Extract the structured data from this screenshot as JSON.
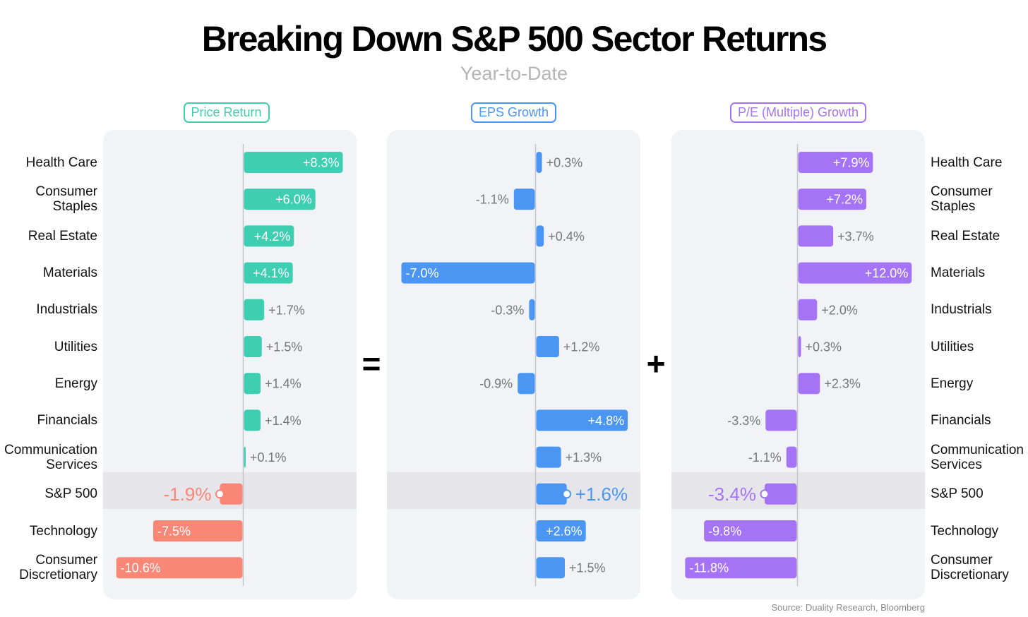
{
  "title": "Breaking Down S&P 500 Sector Returns",
  "subtitle": "Year-to-Date",
  "source": "Source: Duality Research, Bloomberg",
  "operators": {
    "equals": "=",
    "plus": "+"
  },
  "colors": {
    "price_positive": "#3ecfb2",
    "price_negative": "#fa8776",
    "eps": "#4b96f3",
    "pe": "#a574f6",
    "panel_bg": "#f2f3f7",
    "sp500_band": "#e6e6ea",
    "label_gray": "#777777"
  },
  "chart_data": [
    {
      "type": "bar",
      "orientation": "horizontal",
      "title": "Price Return",
      "categories": [
        "Health Care",
        "Consumer Staples",
        "Real Estate",
        "Materials",
        "Industrials",
        "Utilities",
        "Energy",
        "Financials",
        "Communication Services",
        "S&P 500",
        "Technology",
        "Consumer Discretionary"
      ],
      "values": [
        8.3,
        6.0,
        4.2,
        4.1,
        1.7,
        1.5,
        1.4,
        1.4,
        0.1,
        -1.9,
        -7.5,
        -10.6
      ],
      "labels": [
        "+8.3%",
        "+6.0%",
        "+4.2%",
        "+4.1%",
        "+1.7%",
        "+1.5%",
        "+1.4%",
        "+1.4%",
        "+0.1%",
        "-1.9%",
        "-7.5%",
        "-10.6%"
      ],
      "highlight": "S&P 500"
    },
    {
      "type": "bar",
      "orientation": "horizontal",
      "title": "EPS Growth",
      "categories": [
        "Health Care",
        "Consumer Staples",
        "Real Estate",
        "Materials",
        "Industrials",
        "Utilities",
        "Energy",
        "Financials",
        "Communication Services",
        "S&P 500",
        "Technology",
        "Consumer Discretionary"
      ],
      "values": [
        0.3,
        -1.1,
        0.4,
        -7.0,
        -0.3,
        1.2,
        -0.9,
        4.8,
        1.3,
        1.6,
        2.6,
        1.5
      ],
      "labels": [
        "+0.3%",
        "-1.1%",
        "+0.4%",
        "-7.0%",
        "-0.3%",
        "+1.2%",
        "-0.9%",
        "+4.8%",
        "+1.3%",
        "+1.6%",
        "+2.6%",
        "+1.5%"
      ],
      "highlight": "S&P 500"
    },
    {
      "type": "bar",
      "orientation": "horizontal",
      "title": "P/E (Multiple) Growth",
      "categories": [
        "Health Care",
        "Consumer Staples",
        "Real Estate",
        "Materials",
        "Industrials",
        "Utilities",
        "Energy",
        "Financials",
        "Communication Services",
        "S&P 500",
        "Technology",
        "Consumer Discretionary"
      ],
      "values": [
        7.9,
        7.2,
        3.7,
        12.0,
        2.0,
        0.3,
        2.3,
        -3.3,
        -1.1,
        -3.4,
        -9.8,
        -11.8
      ],
      "labels": [
        "+7.9%",
        "+7.2%",
        "+3.7%",
        "+12.0%",
        "+2.0%",
        "+0.3%",
        "+2.3%",
        "-3.3%",
        "-1.1%",
        "-3.4%",
        "-9.8%",
        "-11.8%"
      ],
      "highlight": "S&P 500"
    }
  ],
  "row_labels": [
    [
      "Health Care"
    ],
    [
      "Consumer",
      "Staples"
    ],
    [
      "Real Estate"
    ],
    [
      "Materials"
    ],
    [
      "Industrials"
    ],
    [
      "Utilities"
    ],
    [
      "Energy"
    ],
    [
      "Financials"
    ],
    [
      "Communication",
      "Services"
    ],
    [
      "S&P 500"
    ],
    [
      "Technology"
    ],
    [
      "Consumer",
      "Discretionary"
    ]
  ]
}
